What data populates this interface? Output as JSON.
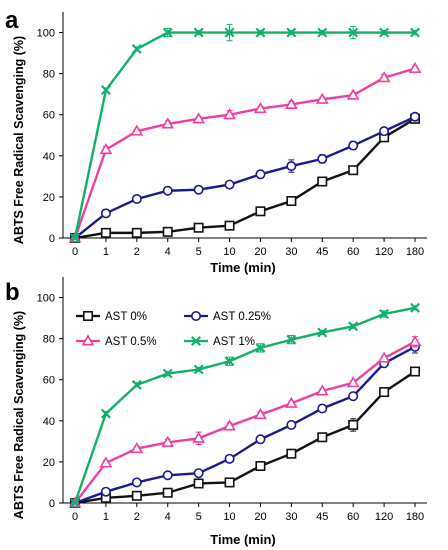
{
  "panels": [
    {
      "panel_label": "a",
      "show_legend": false
    },
    {
      "panel_label": "b",
      "show_legend": true
    }
  ],
  "chart_data": [
    {
      "type": "line",
      "panel": "a",
      "xlabel": "Time (min)",
      "ylabel": "ABTS Free Radical Scavenging (%)",
      "categories": [
        "0",
        "1",
        "2",
        "4",
        "5",
        "10",
        "20",
        "30",
        "45",
        "60",
        "120",
        "180"
      ],
      "y_ticks": [
        "0",
        "20",
        "40",
        "60",
        "80",
        "100"
      ],
      "ylim": [
        0,
        110
      ],
      "grid": false,
      "series": [
        {
          "name": "AST 0%",
          "color": "#111111",
          "marker": "square",
          "values": [
            0,
            2.5,
            2.5,
            3,
            5,
            6,
            13,
            18,
            27.5,
            33,
            49,
            58
          ],
          "errors": [
            0.5,
            0.5,
            0.5,
            0.5,
            0.8,
            0.8,
            1,
            2,
            1.5,
            1.5,
            2,
            1.5
          ]
        },
        {
          "name": "AST 0.25%",
          "color": "#1a1a8c",
          "marker": "circle",
          "values": [
            0,
            12,
            19,
            23,
            23.5,
            26,
            31,
            35,
            38.5,
            45,
            52,
            59
          ],
          "errors": [
            0.5,
            1,
            1,
            1,
            1,
            1,
            1.5,
            3,
            2,
            2,
            1.5,
            1
          ]
        },
        {
          "name": "AST 0.5%",
          "color": "#ee3fa0",
          "marker": "triangle",
          "values": [
            0,
            43,
            52,
            55.5,
            58,
            60,
            63,
            65,
            67.5,
            69.5,
            78,
            82.5
          ],
          "errors": [
            1,
            1.5,
            1,
            1.5,
            1,
            2,
            1,
            1.5,
            1,
            1,
            1.5,
            1
          ]
        },
        {
          "name": "AST 1%",
          "color": "#13b06a",
          "marker": "x",
          "values": [
            0,
            72,
            92,
            100,
            100,
            100,
            100,
            100,
            100,
            100,
            100,
            100
          ],
          "errors": [
            0.5,
            1,
            1,
            2,
            1,
            4,
            1,
            1,
            1,
            3,
            1,
            1
          ]
        }
      ]
    },
    {
      "type": "line",
      "panel": "b",
      "xlabel": "Time (min)",
      "ylabel": "ABTS Free Radical Scavenging (%)",
      "categories": [
        "0",
        "1",
        "2",
        "4",
        "5",
        "10",
        "20",
        "30",
        "45",
        "60",
        "120",
        "180"
      ],
      "y_ticks": [
        "0",
        "20",
        "40",
        "60",
        "80",
        "100"
      ],
      "ylim": [
        0,
        110
      ],
      "grid": false,
      "legend_position": "top-left",
      "series": [
        {
          "name": "AST 0%",
          "color": "#111111",
          "marker": "square",
          "values": [
            0,
            2.5,
            3.5,
            5,
            9.5,
            10,
            18,
            24,
            32,
            38,
            54,
            64
          ],
          "errors": [
            0.5,
            0.5,
            0.5,
            1,
            1,
            1,
            1,
            1,
            1.5,
            3,
            1,
            1.5
          ]
        },
        {
          "name": "AST 0.25%",
          "color": "#1a1a8c",
          "marker": "circle",
          "values": [
            0,
            5.5,
            10,
            13.5,
            14.5,
            21.5,
            31,
            38,
            46,
            52,
            68,
            76
          ],
          "errors": [
            0.5,
            0.5,
            1,
            1,
            1,
            1,
            1.5,
            1,
            1.5,
            1.5,
            1.5,
            3
          ]
        },
        {
          "name": "AST 0.5%",
          "color": "#ee3fa0",
          "marker": "triangle",
          "values": [
            0,
            19.5,
            26.5,
            29.5,
            31.5,
            37.5,
            43,
            48.5,
            54.5,
            58.5,
            70.5,
            78.5
          ],
          "errors": [
            0.5,
            1,
            1,
            1.5,
            3,
            1.5,
            1.5,
            1,
            1,
            1,
            1,
            2.5
          ]
        },
        {
          "name": "AST 1%",
          "color": "#13b06a",
          "marker": "x",
          "values": [
            0,
            43.5,
            57.5,
            63,
            65,
            69,
            75.5,
            79.5,
            83,
            86,
            92,
            95
          ],
          "errors": [
            0.5,
            1,
            1,
            1,
            1,
            2,
            2,
            2,
            1,
            1,
            1.5,
            1
          ]
        }
      ]
    }
  ]
}
